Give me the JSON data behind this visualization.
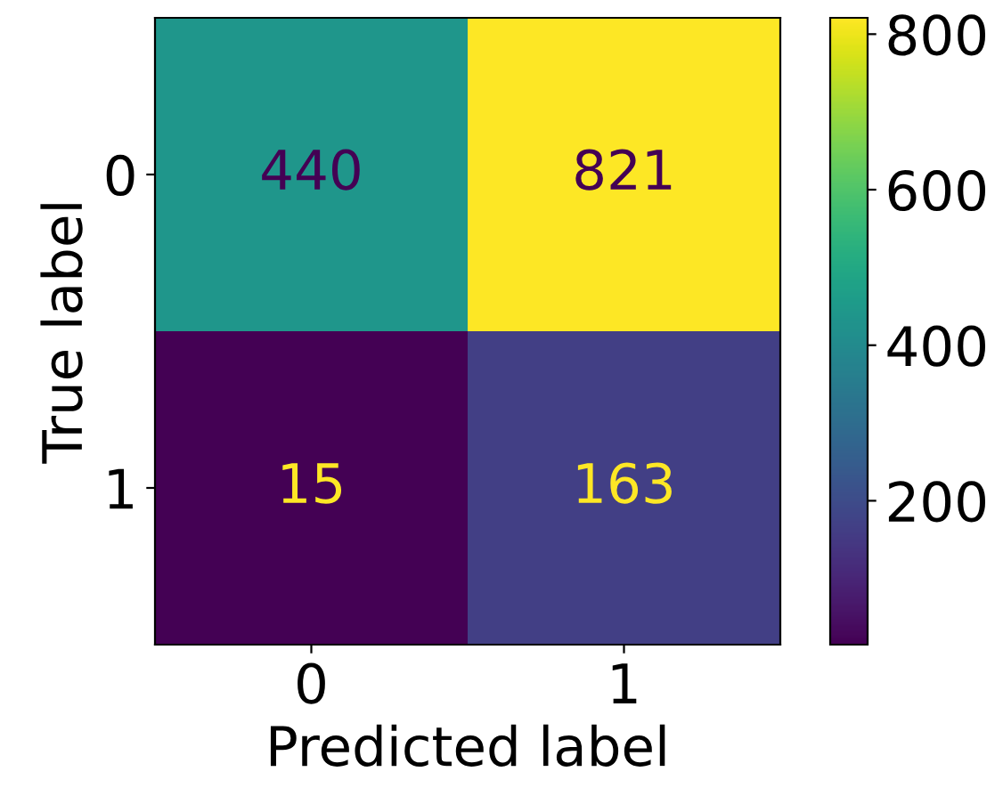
{
  "chart_data": {
    "type": "heatmap",
    "xlabel": "Predicted label",
    "ylabel": "True label",
    "categories": [
      "0",
      "1"
    ],
    "y_categories": [
      "0",
      "1"
    ],
    "cells": [
      [
        440,
        821
      ],
      [
        15,
        163
      ]
    ],
    "clim": [
      15,
      821
    ],
    "cticks": [
      200,
      400,
      600,
      800
    ],
    "data_labels": true,
    "grid": false
  }
}
